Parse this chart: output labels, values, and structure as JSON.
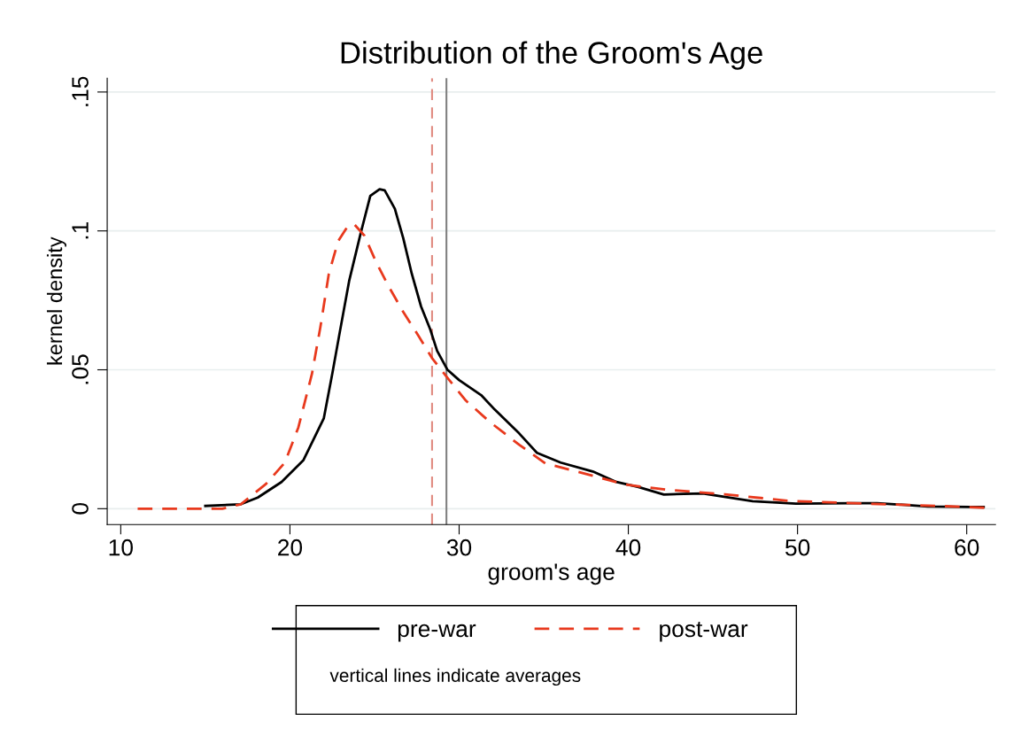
{
  "chart_data": {
    "type": "line",
    "title": "Distribution of the Groom's Age",
    "xlabel": "groom's age",
    "ylabel": "kernel density",
    "xlim": [
      9.2,
      61.7
    ],
    "ylim": [
      -0.0057,
      0.155
    ],
    "xticks": [
      10,
      20,
      30,
      40,
      50,
      60
    ],
    "yticks": [
      {
        "value": 0,
        "label": "0"
      },
      {
        "value": 0.05,
        "label": ".05"
      },
      {
        "value": 0.1,
        "label": ".1"
      },
      {
        "value": 0.15,
        "label": ".15"
      }
    ],
    "grid": "y",
    "legend": "bottom",
    "marker": "none",
    "annotations": [
      "vertical lines indicate averages"
    ],
    "ref_lines": [
      {
        "axis": "x",
        "value": 28.4,
        "label": null,
        "color": "#e08a80",
        "line_style": "dashed"
      },
      {
        "axis": "x",
        "value": 29.25,
        "label": null,
        "color": "#808080",
        "line_style": "solid"
      }
    ],
    "series": [
      {
        "name": "pre-war",
        "color": "#000000",
        "line_style": "solid",
        "x": [
          15,
          17.1,
          18.1,
          19.5,
          20.8,
          22.0,
          22.5,
          22.9,
          23.5,
          24.2,
          24.75,
          25.3,
          25.6,
          26.2,
          26.7,
          27.2,
          27.75,
          28.3,
          28.7,
          29.3,
          30.0,
          31.3,
          32.1,
          33.55,
          34.6,
          36.0,
          37.9,
          39.3,
          40.6,
          42.1,
          44.4,
          47.35,
          49.9,
          53.3,
          54.7,
          57.7,
          60.2,
          61
        ],
        "values": [
          0.001,
          0.0016,
          0.004,
          0.0096,
          0.0175,
          0.0325,
          0.0485,
          0.062,
          0.082,
          0.0996,
          0.1126,
          0.115,
          0.1146,
          0.108,
          0.0973,
          0.0846,
          0.0728,
          0.0644,
          0.0568,
          0.0501,
          0.0463,
          0.0409,
          0.0357,
          0.0271,
          0.0201,
          0.0166,
          0.0134,
          0.0096,
          0.0078,
          0.0051,
          0.0055,
          0.0027,
          0.0018,
          0.002,
          0.002,
          0.0008,
          0.0006,
          0.0006
        ]
      },
      {
        "name": "post-war",
        "color": "#e8391d",
        "line_style": "dashed",
        "x": [
          11,
          16,
          17.1,
          18.6,
          19.7,
          20.5,
          21.3,
          21.8,
          22.3,
          22.85,
          23.4,
          23.8,
          24.4,
          25.1,
          25.8,
          26.7,
          27.6,
          28.4,
          29.3,
          30.4,
          31.8,
          33.55,
          35.1,
          37.7,
          39.8,
          42.3,
          45.7,
          49.5,
          54.1,
          58.3,
          61.2
        ],
        "values": [
          0,
          0,
          0.0016,
          0.009,
          0.0166,
          0.0293,
          0.0485,
          0.0654,
          0.0846,
          0.0963,
          0.1015,
          0.1024,
          0.0983,
          0.0887,
          0.0804,
          0.0708,
          0.0622,
          0.0542,
          0.0472,
          0.0389,
          0.0313,
          0.023,
          0.0163,
          0.0122,
          0.0087,
          0.0068,
          0.0052,
          0.0028,
          0.0018,
          0.001,
          0.0003
        ]
      }
    ]
  }
}
